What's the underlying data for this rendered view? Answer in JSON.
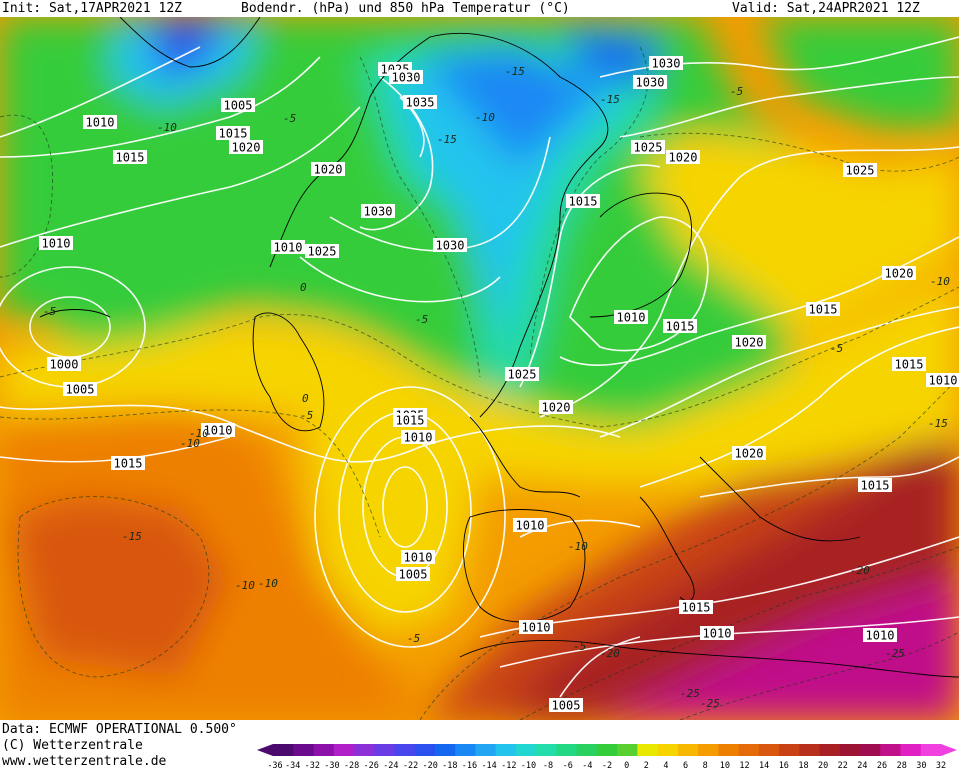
{
  "header": {
    "init": "Init: Sat,17APR2021 12Z",
    "title": "Bodendr. (hPa) und 850 hPa Temperatur (°C)",
    "valid": "Valid: Sat,24APR2021 12Z"
  },
  "footer": {
    "data_line": "Data: ECMWF OPERATIONAL 0.500°",
    "copyright": "(C) Wetterzentrale",
    "url": "www.wetterzentrale.de"
  },
  "legend": {
    "ticks": [
      "-36",
      "-34",
      "-32",
      "-30",
      "-28",
      "-26",
      "-24",
      "-22",
      "-20",
      "-18",
      "-16",
      "-14",
      "-12",
      "-10",
      "-8",
      "-6",
      "-4",
      "-2",
      "0",
      "2",
      "4",
      "6",
      "8",
      "10",
      "12",
      "14",
      "16",
      "18",
      "20",
      "22",
      "24",
      "26",
      "28",
      "30",
      "32"
    ],
    "colors": [
      "#4b0a6e",
      "#6a0a8c",
      "#8c10aa",
      "#b020c8",
      "#8c30d8",
      "#6a3ce6",
      "#4a46ee",
      "#2a50f0",
      "#1468f0",
      "#1a88f4",
      "#22a6f4",
      "#22c4ee",
      "#22d6d0",
      "#22dcaa",
      "#22d882",
      "#2ad060",
      "#34cc3a",
      "#58d030",
      "#e8e800",
      "#f6d400",
      "#f8b800",
      "#f49c00",
      "#ee8000",
      "#e46a0a",
      "#d8560e",
      "#c84216",
      "#b8301c",
      "#a82024",
      "#9c1432",
      "#a00c50",
      "#c0108a",
      "#e020c2",
      "#f040e0"
    ],
    "min": -36,
    "max": 32,
    "step": 2
  },
  "isobar_labels": [
    {
      "t": "1025"
    },
    {
      "t": "1030"
    },
    {
      "t": "1035"
    },
    {
      "t": "1005"
    },
    {
      "t": "1010"
    },
    {
      "t": "1015"
    },
    {
      "t": "1020"
    },
    {
      "t": "1015"
    },
    {
      "t": "1020"
    },
    {
      "t": "1030"
    },
    {
      "t": "1010"
    },
    {
      "t": "1025"
    },
    {
      "t": "1030"
    },
    {
      "t": "1010"
    },
    {
      "t": "1000"
    },
    {
      "t": "1005"
    },
    {
      "t": "1010"
    },
    {
      "t": "1015"
    },
    {
      "t": "1025"
    },
    {
      "t": "1030"
    },
    {
      "t": "1030"
    },
    {
      "t": "1025"
    },
    {
      "t": "1020"
    },
    {
      "t": "1015"
    },
    {
      "t": "1010"
    },
    {
      "t": "1015"
    },
    {
      "t": "1020"
    },
    {
      "t": "1025"
    },
    {
      "t": "1020"
    },
    {
      "t": "1015"
    },
    {
      "t": "1015"
    },
    {
      "t": "1010"
    },
    {
      "t": "1025"
    },
    {
      "t": "1020"
    },
    {
      "t": "1015"
    },
    {
      "t": "1010"
    },
    {
      "t": "1015"
    },
    {
      "t": "1020"
    },
    {
      "t": "1015"
    },
    {
      "t": "1010"
    },
    {
      "t": "1010"
    },
    {
      "t": "1005"
    },
    {
      "t": "1015"
    },
    {
      "t": "1010"
    },
    {
      "t": "1010"
    },
    {
      "t": "1005"
    },
    {
      "t": "1010"
    },
    {
      "t": "1015"
    },
    {
      "t": "1015"
    }
  ],
  "temp_labels": [
    "-15",
    "-15",
    "-15",
    "-10",
    "-10",
    "-5",
    "-5",
    "-5",
    "0",
    "0",
    "-5",
    "-5",
    "-10",
    "-10",
    "-15",
    "-10",
    "-5",
    "-5",
    "-5",
    "-10",
    "-10",
    "-15",
    "-20",
    "-20",
    "-25",
    "-25",
    "-25",
    "-10"
  ]
}
